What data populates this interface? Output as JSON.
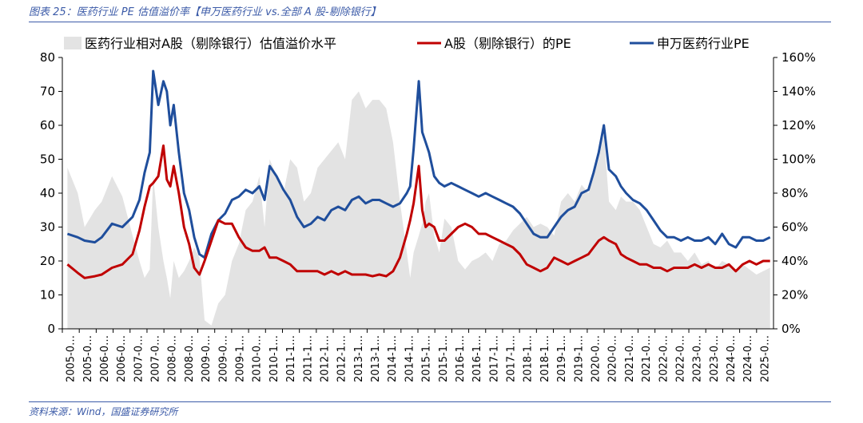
{
  "title": "图表 25：医药行业 PE 估值溢价率【申万医药行业 vs.全部 A 股-剔除银行】",
  "source": "资料来源：Wind，国盛证券研究所",
  "colors": {
    "area": "#e3e3e3",
    "line_a": "#c00000",
    "line_med": "#1f4e9c",
    "title": "#3c5ba8"
  },
  "chart_data": {
    "type": "line",
    "legend": [
      {
        "name": "医药行业相对A股（剔除银行）估值溢价水平",
        "kind": "area",
        "color": "#e3e3e3"
      },
      {
        "name": "A股（剔除银行）的PE",
        "kind": "line",
        "color": "#c00000"
      },
      {
        "name": "申万医药行业PE",
        "kind": "line",
        "color": "#1f4e9c"
      }
    ],
    "legend_position": "top",
    "y_left": {
      "min": 0,
      "max": 80,
      "ticks": [
        0,
        10,
        20,
        30,
        40,
        50,
        60,
        70,
        80
      ]
    },
    "y_right": {
      "min": 0,
      "max": 160,
      "ticks": [
        "0%",
        "20%",
        "40%",
        "60%",
        "80%",
        "100%",
        "120%",
        "140%",
        "160%"
      ]
    },
    "x_tick_labels": [
      "2005-0…",
      "2005-0…",
      "2006-0…",
      "2006-0…",
      "2007-0…",
      "2007-0…",
      "2008-0…",
      "2008-0…",
      "2009-0…",
      "2009-0…",
      "2009-1…",
      "2010-0…",
      "2010-1…",
      "2011-1…",
      "2011-1…",
      "2012-1…",
      "2012-1…",
      "2013-1…",
      "2013-1…",
      "2014-1…",
      "2014-1…",
      "2015-1…",
      "2015-1…",
      "2016-1…",
      "2016-1…",
      "2017-1…",
      "2017-1…",
      "2018-1…",
      "2018-1…",
      "2019-1…",
      "2019-1…",
      "2020-0…",
      "2020-0…",
      "2021-0…",
      "2021-0…",
      "2022-0…",
      "2022-0…",
      "2023-0…",
      "2023-0…",
      "2024-0…",
      "2024-0…",
      "2025-0…"
    ],
    "x_note": "time axis from 2005 to 2025; data x values are decimal years (approximate readings)",
    "series": [
      {
        "name": "申万医药行业PE",
        "axis": "left",
        "x": [
          2005.0,
          2005.3,
          2005.5,
          2005.8,
          2006.0,
          2006.3,
          2006.6,
          2006.9,
          2007.1,
          2007.25,
          2007.4,
          2007.5,
          2007.65,
          2007.8,
          2007.9,
          2008.0,
          2008.1,
          2008.25,
          2008.4,
          2008.55,
          2008.7,
          2008.85,
          2009.0,
          2009.2,
          2009.4,
          2009.6,
          2009.8,
          2010.0,
          2010.2,
          2010.4,
          2010.6,
          2010.75,
          2010.9,
          2011.1,
          2011.3,
          2011.5,
          2011.7,
          2011.9,
          2012.1,
          2012.3,
          2012.5,
          2012.7,
          2012.9,
          2013.1,
          2013.3,
          2013.5,
          2013.7,
          2013.9,
          2014.1,
          2014.3,
          2014.5,
          2014.7,
          2014.9,
          2015.0,
          2015.1,
          2015.25,
          2015.35,
          2015.45,
          2015.55,
          2015.7,
          2015.85,
          2016.0,
          2016.2,
          2016.4,
          2016.6,
          2016.8,
          2017.0,
          2017.2,
          2017.4,
          2017.6,
          2017.8,
          2018.0,
          2018.2,
          2018.4,
          2018.6,
          2018.8,
          2019.0,
          2019.2,
          2019.4,
          2019.6,
          2019.8,
          2020.0,
          2020.2,
          2020.35,
          2020.5,
          2020.65,
          2020.8,
          2021.0,
          2021.15,
          2021.3,
          2021.5,
          2021.7,
          2021.9,
          2022.1,
          2022.3,
          2022.5,
          2022.7,
          2022.9,
          2023.1,
          2023.3,
          2023.5,
          2023.7,
          2023.9,
          2024.1,
          2024.3,
          2024.5,
          2024.7,
          2024.9,
          2025.1,
          2025.3,
          2025.5
        ],
        "y": [
          28,
          27,
          26,
          25.5,
          27,
          31,
          30,
          33,
          38,
          46,
          52,
          76,
          66,
          73,
          70,
          60,
          66,
          52,
          40,
          35,
          27,
          22,
          21,
          28,
          32,
          34,
          38,
          39,
          41,
          40,
          42,
          38,
          48,
          45,
          41,
          38,
          33,
          30,
          31,
          33,
          32,
          35,
          36,
          35,
          38,
          39,
          37,
          38,
          38,
          37,
          36,
          37,
          40,
          42,
          53,
          73,
          58,
          55,
          52,
          45,
          43,
          42,
          43,
          42,
          41,
          40,
          39,
          40,
          39,
          38,
          37,
          36,
          34,
          31,
          28,
          27,
          27,
          30,
          33,
          35,
          36,
          40,
          41,
          46,
          52,
          60,
          47,
          45,
          42,
          40,
          38,
          37,
          35,
          32,
          29,
          27,
          27,
          26,
          27,
          26,
          26,
          27,
          25,
          28,
          25,
          24,
          27,
          27,
          26,
          26,
          27
        ]
      },
      {
        "name": "A股（剔除银行）的PE",
        "axis": "left",
        "x": [
          2005.0,
          2005.3,
          2005.5,
          2005.8,
          2006.0,
          2006.3,
          2006.6,
          2006.9,
          2007.1,
          2007.25,
          2007.4,
          2007.5,
          2007.65,
          2007.8,
          2007.9,
          2008.0,
          2008.1,
          2008.25,
          2008.4,
          2008.55,
          2008.7,
          2008.85,
          2009.0,
          2009.2,
          2009.4,
          2009.6,
          2009.8,
          2010.0,
          2010.2,
          2010.4,
          2010.6,
          2010.75,
          2010.9,
          2011.1,
          2011.3,
          2011.5,
          2011.7,
          2011.9,
          2012.1,
          2012.3,
          2012.5,
          2012.7,
          2012.9,
          2013.1,
          2013.3,
          2013.5,
          2013.7,
          2013.9,
          2014.1,
          2014.3,
          2014.5,
          2014.7,
          2014.9,
          2015.0,
          2015.1,
          2015.25,
          2015.35,
          2015.45,
          2015.55,
          2015.7,
          2015.85,
          2016.0,
          2016.2,
          2016.4,
          2016.6,
          2016.8,
          2017.0,
          2017.2,
          2017.4,
          2017.6,
          2017.8,
          2018.0,
          2018.2,
          2018.4,
          2018.6,
          2018.8,
          2019.0,
          2019.2,
          2019.4,
          2019.6,
          2019.8,
          2020.0,
          2020.2,
          2020.35,
          2020.5,
          2020.65,
          2020.8,
          2021.0,
          2021.15,
          2021.3,
          2021.5,
          2021.7,
          2021.9,
          2022.1,
          2022.3,
          2022.5,
          2022.7,
          2022.9,
          2023.1,
          2023.3,
          2023.5,
          2023.7,
          2023.9,
          2024.1,
          2024.3,
          2024.5,
          2024.7,
          2024.9,
          2025.1,
          2025.3,
          2025.5
        ],
        "y": [
          19,
          16.5,
          15,
          15.5,
          16,
          18,
          19,
          22,
          29,
          36,
          42,
          43,
          45,
          54,
          44,
          42,
          48,
          40,
          30,
          25,
          18,
          16,
          20,
          26,
          32,
          31,
          31,
          27,
          24,
          23,
          23,
          24,
          21,
          21,
          20,
          19,
          17,
          17,
          17,
          17,
          16,
          17,
          16,
          17,
          16,
          16,
          16,
          15.5,
          16,
          15.5,
          17,
          21,
          28,
          32,
          37,
          48,
          35,
          30,
          31,
          30,
          26,
          26,
          28,
          30,
          31,
          30,
          28,
          28,
          27,
          26,
          25,
          24,
          22,
          19,
          18,
          17,
          18,
          21,
          20,
          19,
          20,
          21,
          22,
          24,
          26,
          27,
          26,
          25,
          22,
          21,
          20,
          19,
          19,
          18,
          18,
          17,
          18,
          18,
          18,
          19,
          18,
          19,
          18,
          18,
          19,
          17,
          19,
          20,
          19,
          20,
          20
        ]
      },
      {
        "name": "医药行业相对A股（剔除银行）估值溢价水平",
        "axis": "right",
        "unit": "%",
        "x": [
          2005.0,
          2005.3,
          2005.5,
          2005.8,
          2006.0,
          2006.3,
          2006.6,
          2006.9,
          2007.1,
          2007.25,
          2007.4,
          2007.5,
          2007.65,
          2007.8,
          2007.9,
          2008.0,
          2008.1,
          2008.25,
          2008.4,
          2008.55,
          2008.7,
          2008.85,
          2009.0,
          2009.2,
          2009.4,
          2009.6,
          2009.8,
          2010.0,
          2010.2,
          2010.4,
          2010.6,
          2010.75,
          2010.9,
          2011.1,
          2011.3,
          2011.5,
          2011.7,
          2011.9,
          2012.1,
          2012.3,
          2012.5,
          2012.7,
          2012.9,
          2013.1,
          2013.3,
          2013.5,
          2013.7,
          2013.9,
          2014.1,
          2014.3,
          2014.5,
          2014.7,
          2014.9,
          2015.0,
          2015.1,
          2015.25,
          2015.35,
          2015.45,
          2015.55,
          2015.7,
          2015.85,
          2016.0,
          2016.2,
          2016.4,
          2016.6,
          2016.8,
          2017.0,
          2017.2,
          2017.4,
          2017.6,
          2017.8,
          2018.0,
          2018.2,
          2018.4,
          2018.6,
          2018.8,
          2019.0,
          2019.2,
          2019.4,
          2019.6,
          2019.8,
          2020.0,
          2020.2,
          2020.35,
          2020.5,
          2020.65,
          2020.8,
          2021.0,
          2021.15,
          2021.3,
          2021.5,
          2021.7,
          2021.9,
          2022.1,
          2022.3,
          2022.5,
          2022.7,
          2022.9,
          2023.1,
          2023.3,
          2023.5,
          2023.7,
          2023.9,
          2024.1,
          2024.3,
          2024.5,
          2024.7,
          2024.9,
          2025.1,
          2025.3,
          2025.5
        ],
        "y": [
          95,
          80,
          60,
          70,
          75,
          90,
          78,
          55,
          40,
          30,
          35,
          90,
          60,
          40,
          30,
          18,
          40,
          30,
          34,
          40,
          48,
          42,
          5,
          2,
          15,
          20,
          40,
          50,
          70,
          75,
          90,
          60,
          100,
          90,
          80,
          100,
          95,
          75,
          80,
          95,
          100,
          105,
          110,
          100,
          135,
          140,
          130,
          135,
          135,
          130,
          110,
          75,
          45,
          30,
          45,
          55,
          62,
          75,
          80,
          55,
          45,
          65,
          60,
          40,
          35,
          40,
          42,
          45,
          40,
          50,
          52,
          58,
          62,
          66,
          60,
          62,
          60,
          55,
          75,
          80,
          75,
          85,
          80,
          90,
          100,
          115,
          75,
          70,
          78,
          75,
          75,
          70,
          60,
          50,
          48,
          52,
          45,
          45,
          40,
          45,
          38,
          40,
          35,
          40,
          38,
          35,
          38,
          35,
          32,
          34,
          36
        ]
      }
    ]
  }
}
